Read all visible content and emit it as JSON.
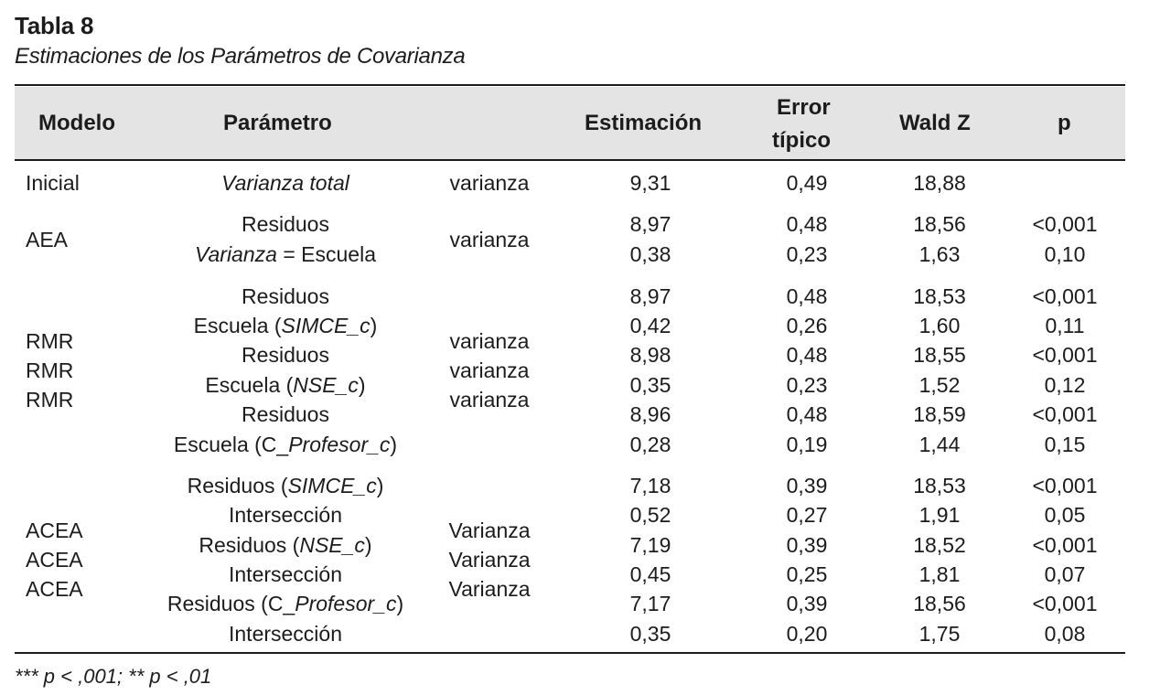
{
  "table": {
    "label": "Tabla 8",
    "caption": "Estimaciones de los Parámetros de Covarianza",
    "headers": {
      "modelo": "Modelo",
      "parametro": "Parámetro",
      "estimacion": "Estimación",
      "error_line1": "Error",
      "error_line2": "típico",
      "wald": "Wald Z",
      "p": "p"
    },
    "groups": [
      {
        "models": [
          "Inicial"
        ],
        "types": [
          "varianza"
        ],
        "rows": [
          {
            "param": "Varianza total",
            "estimacion": "9,31",
            "error": "0,49",
            "wald": "18,88",
            "p": ""
          }
        ]
      },
      {
        "models": [
          "AEA"
        ],
        "types": [
          "varianza"
        ],
        "rows": [
          {
            "param": "Residuos",
            "estimacion": "8,97",
            "error": "0,48",
            "wald": "18,56",
            "p": "<0,001"
          },
          {
            "param": "Varianza = Escuela",
            "estimacion": "0,38",
            "error": "0,23",
            "wald": "1,63",
            "p": "0,10"
          }
        ]
      },
      {
        "models": [
          "RMR",
          "RMR",
          "RMR"
        ],
        "types": [
          "varianza",
          "varianza",
          "varianza"
        ],
        "rows": [
          {
            "param": "Residuos",
            "estimacion": "8,97",
            "error": "0,48",
            "wald": "18,53",
            "p": "<0,001"
          },
          {
            "param": "Escuela (SIMCE_c)",
            "estimacion": "0,42",
            "error": "0,26",
            "wald": "1,60",
            "p": "0,11"
          },
          {
            "param": "Residuos",
            "estimacion": "8,98",
            "error": "0,48",
            "wald": "18,55",
            "p": "<0,001"
          },
          {
            "param": "Escuela (NSE_c)",
            "estimacion": "0,35",
            "error": "0,23",
            "wald": "1,52",
            "p": "0,12"
          },
          {
            "param": "Residuos",
            "estimacion": "8,96",
            "error": "0,48",
            "wald": "18,59",
            "p": "<0,001"
          },
          {
            "param": "Escuela (C_Profesor_c)",
            "estimacion": "0,28",
            "error": "0,19",
            "wald": "1,44",
            "p": "0,15"
          }
        ]
      },
      {
        "models": [
          "ACEA",
          "ACEA",
          "ACEA"
        ],
        "types": [
          "Varianza",
          "Varianza",
          "Varianza"
        ],
        "rows": [
          {
            "param": "Residuos (SIMCE_c)",
            "estimacion": "7,18",
            "error": "0,39",
            "wald": "18,53",
            "p": "<0,001"
          },
          {
            "param": "Intersección",
            "estimacion": "0,52",
            "error": "0,27",
            "wald": "1,91",
            "p": "0,05"
          },
          {
            "param": "Residuos (NSE_c)",
            "estimacion": "7,19",
            "error": "0,39",
            "wald": "18,52",
            "p": "<0,001"
          },
          {
            "param": "Intersección",
            "estimacion": "0,45",
            "error": "0,25",
            "wald": "1,81",
            "p": "0,07"
          },
          {
            "param": "Residuos (C_Profesor_c)",
            "estimacion": "7,17",
            "error": "0,39",
            "wald": "18,56",
            "p": "<0,001"
          },
          {
            "param": "Intersección",
            "estimacion": "0,35",
            "error": "0,20",
            "wald": "1,75",
            "p": "0,08"
          }
        ]
      }
    ],
    "footnote": "*** p < ,001; ** p < ,01"
  }
}
